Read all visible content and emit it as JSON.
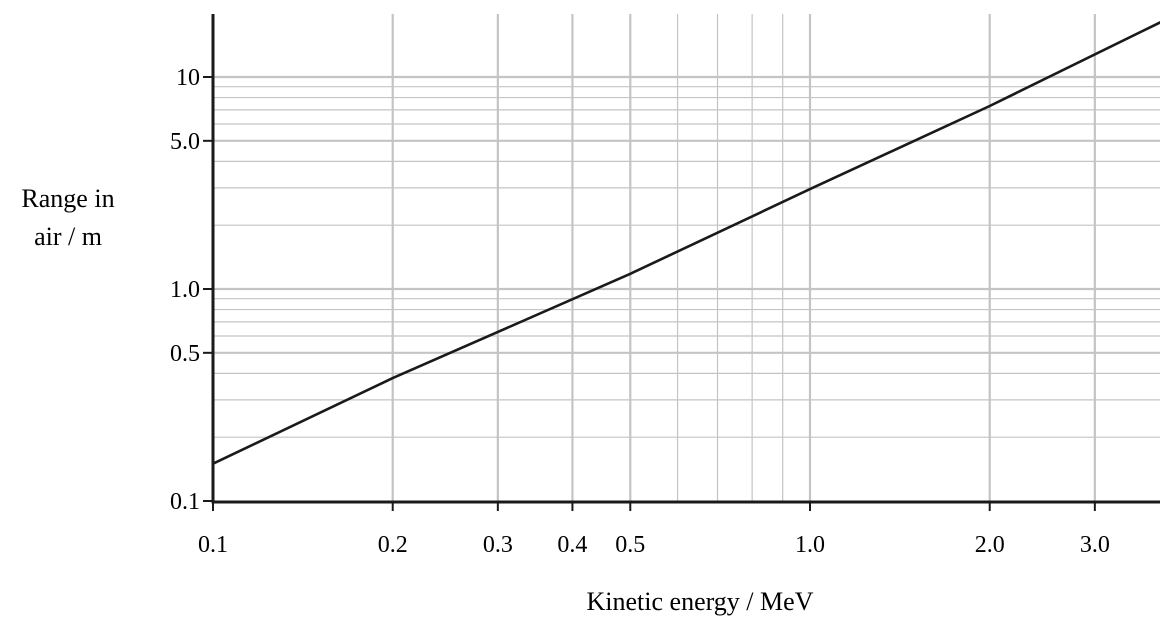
{
  "chart_data": {
    "type": "line",
    "title": "",
    "xlabel": "Kinetic energy / MeV",
    "ylabel_lines": [
      "Range in",
      "air / m"
    ],
    "x_scale": "log",
    "y_scale": "log",
    "xlim": [
      0.1,
      4.0
    ],
    "ylim": [
      0.1,
      20
    ],
    "grid": true,
    "x_ticks": [
      {
        "value": 0.1,
        "label": "0.1"
      },
      {
        "value": 0.2,
        "label": "0.2"
      },
      {
        "value": 0.3,
        "label": "0.3"
      },
      {
        "value": 0.4,
        "label": "0.4"
      },
      {
        "value": 0.5,
        "label": "0.5"
      },
      {
        "value": 1.0,
        "label": "1.0"
      },
      {
        "value": 2.0,
        "label": "2.0"
      },
      {
        "value": 3.0,
        "label": "3.0"
      }
    ],
    "y_ticks": [
      {
        "value": 0.1,
        "label": "0.1"
      },
      {
        "value": 0.5,
        "label": "0.5"
      },
      {
        "value": 1.0,
        "label": "1.0"
      },
      {
        "value": 5.0,
        "label": "5.0"
      },
      {
        "value": 10,
        "label": "10"
      }
    ],
    "x_minor_grid": [
      0.6,
      0.7,
      0.8,
      0.9
    ],
    "y_minor_grid": [
      0.2,
      0.3,
      0.4,
      0.6,
      0.7,
      0.8,
      0.9,
      2,
      3,
      4,
      6,
      7,
      8,
      9
    ],
    "series": [
      {
        "x": [
          0.1,
          0.2,
          0.5,
          1.0,
          2.0,
          4.0
        ],
        "y": [
          0.15,
          0.38,
          1.18,
          2.96,
          7.3,
          19.0
        ]
      }
    ],
    "colors": {
      "line": "#1a1a1a",
      "axis": "#1a1a1a",
      "grid": "#c4c4c4"
    }
  }
}
